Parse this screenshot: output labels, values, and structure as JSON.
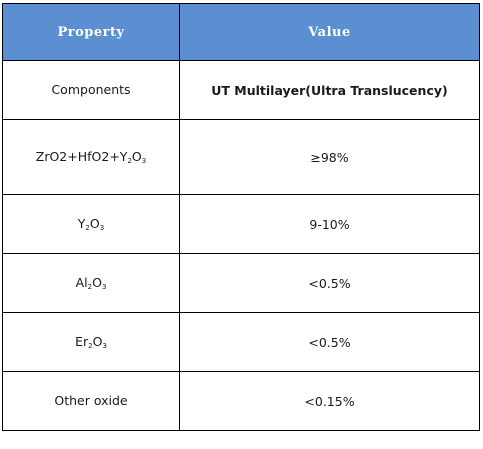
{
  "table": {
    "headers": {
      "property": "Property",
      "value": "Value"
    },
    "rows": [
      {
        "property": {
          "base": "Components",
          "sub": "",
          "tail": "",
          "sub2": ""
        },
        "value": "UT Multilayer(Ultra Translucency)"
      },
      {
        "property": {
          "base": "ZrO2+HfO2+Y",
          "sub": "2",
          "tail": "O",
          "sub2": "3"
        },
        "value": "≥98%"
      },
      {
        "property": {
          "base": "Y",
          "sub": "2",
          "tail": "O",
          "sub2": "3"
        },
        "value": "9-10%"
      },
      {
        "property": {
          "base": "Al",
          "sub": "2",
          "tail": "O",
          "sub2": "3"
        },
        "value": "<0.5%"
      },
      {
        "property": {
          "base": "Er",
          "sub": "2",
          "tail": "O",
          "sub2": "3"
        },
        "value": "<0.5%"
      },
      {
        "property": {
          "base": "Other oxide",
          "sub": "",
          "tail": "",
          "sub2": ""
        },
        "value": "<0.15%"
      }
    ]
  },
  "colors": {
    "header_bg": "#5b8fd1",
    "header_text": "#ffffff",
    "border": "#000000"
  }
}
